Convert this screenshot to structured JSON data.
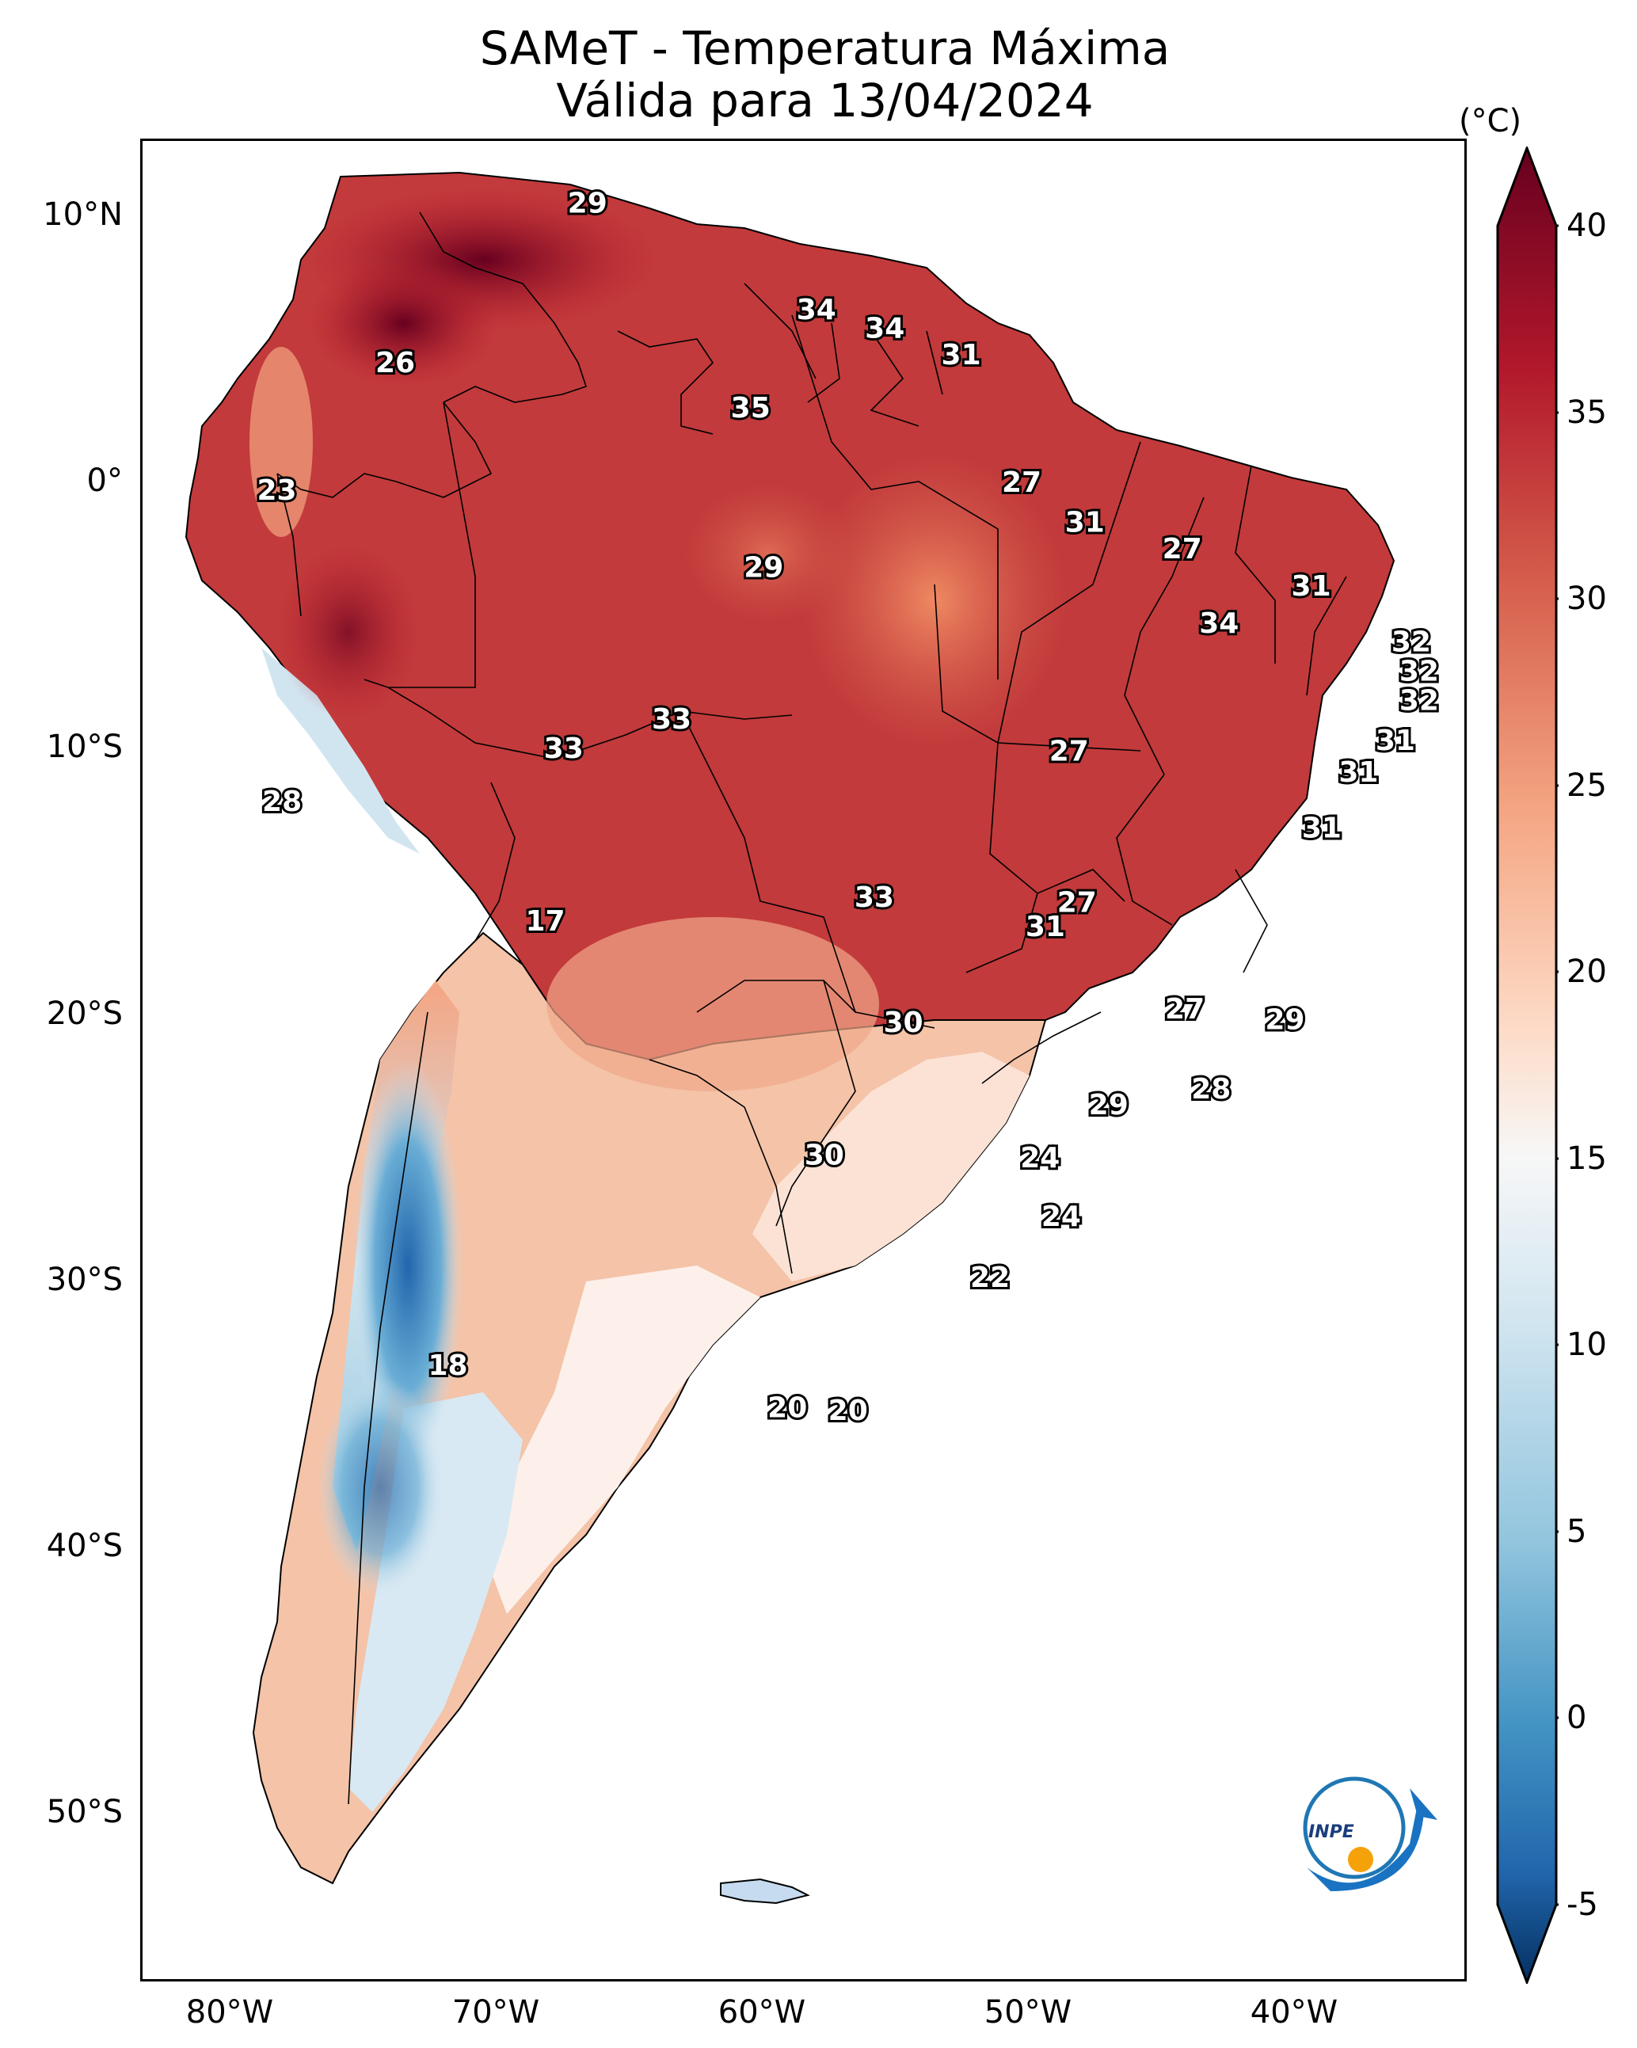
{
  "title": {
    "line1": "SAMeT - Temperatura Máxima",
    "line2": "Válida para 13/04/2024"
  },
  "map": {
    "lat_ticks": [
      "10°N",
      "0°",
      "10°S",
      "20°S",
      "30°S",
      "40°S",
      "50°S"
    ],
    "lon_ticks": [
      "80°W",
      "70°W",
      "60°W",
      "50°W",
      "40°W"
    ],
    "temperature_labels": [
      {
        "value": "29",
        "lon": -66.5,
        "lat": 10.5
      },
      {
        "value": "34",
        "lon": -57.8,
        "lat": 6.5
      },
      {
        "value": "34",
        "lon": -55.2,
        "lat": 5.8
      },
      {
        "value": "31",
        "lon": -52.3,
        "lat": 4.8
      },
      {
        "value": "26",
        "lon": -73.8,
        "lat": 4.5
      },
      {
        "value": "35",
        "lon": -60.3,
        "lat": 2.8
      },
      {
        "value": "27",
        "lon": -50.0,
        "lat": 0.0
      },
      {
        "value": "23",
        "lon": -78.3,
        "lat": -0.3
      },
      {
        "value": "31",
        "lon": -47.6,
        "lat": -1.5
      },
      {
        "value": "27",
        "lon": -43.9,
        "lat": -2.5
      },
      {
        "value": "29",
        "lon": -59.8,
        "lat": -3.2
      },
      {
        "value": "31",
        "lon": -39.0,
        "lat": -3.9
      },
      {
        "value": "34",
        "lon": -42.5,
        "lat": -5.3
      },
      {
        "value": "32",
        "lon": -35.2,
        "lat": -6.0
      },
      {
        "value": "32",
        "lon": -34.9,
        "lat": -7.1
      },
      {
        "value": "32",
        "lon": -34.9,
        "lat": -8.2
      },
      {
        "value": "33",
        "lon": -63.3,
        "lat": -8.9
      },
      {
        "value": "31",
        "lon": -35.8,
        "lat": -9.7
      },
      {
        "value": "33",
        "lon": -67.4,
        "lat": -10.0
      },
      {
        "value": "27",
        "lon": -48.2,
        "lat": -10.1
      },
      {
        "value": "31",
        "lon": -37.2,
        "lat": -10.9
      },
      {
        "value": "28",
        "lon": -78.1,
        "lat": -12.0
      },
      {
        "value": "31",
        "lon": -38.6,
        "lat": -13.0
      },
      {
        "value": "33",
        "lon": -55.6,
        "lat": -15.6
      },
      {
        "value": "27",
        "lon": -47.9,
        "lat": -15.8
      },
      {
        "value": "31",
        "lon": -49.1,
        "lat": -16.7
      },
      {
        "value": "17",
        "lon": -68.1,
        "lat": -16.5
      },
      {
        "value": "27",
        "lon": -43.8,
        "lat": -19.8
      },
      {
        "value": "29",
        "lon": -40.0,
        "lat": -20.2
      },
      {
        "value": "30",
        "lon": -54.5,
        "lat": -20.3
      },
      {
        "value": "28",
        "lon": -42.8,
        "lat": -22.8
      },
      {
        "value": "29",
        "lon": -46.7,
        "lat": -23.4
      },
      {
        "value": "30",
        "lon": -57.5,
        "lat": -25.3
      },
      {
        "value": "24",
        "lon": -49.3,
        "lat": -25.4
      },
      {
        "value": "24",
        "lon": -48.5,
        "lat": -27.6
      },
      {
        "value": "22",
        "lon": -51.2,
        "lat": -29.9
      },
      {
        "value": "18",
        "lon": -71.8,
        "lat": -33.2
      },
      {
        "value": "20",
        "lon": -58.9,
        "lat": -34.8
      },
      {
        "value": "20",
        "lon": -56.6,
        "lat": -34.9
      }
    ],
    "logo_text": "INPE"
  },
  "colorbar": {
    "unit": "(°C)",
    "ticks": [
      "40",
      "35",
      "30",
      "25",
      "20",
      "15",
      "10",
      "5",
      "0",
      "-5"
    ],
    "range": [
      -5,
      40
    ],
    "colors": {
      "hot": "#67001f",
      "warm": "#c9393a",
      "mild": "#f4a582",
      "neutral": "#f7f7f7",
      "cool": "#92c5de",
      "cold": "#2166ac",
      "coldest": "#053061"
    }
  }
}
